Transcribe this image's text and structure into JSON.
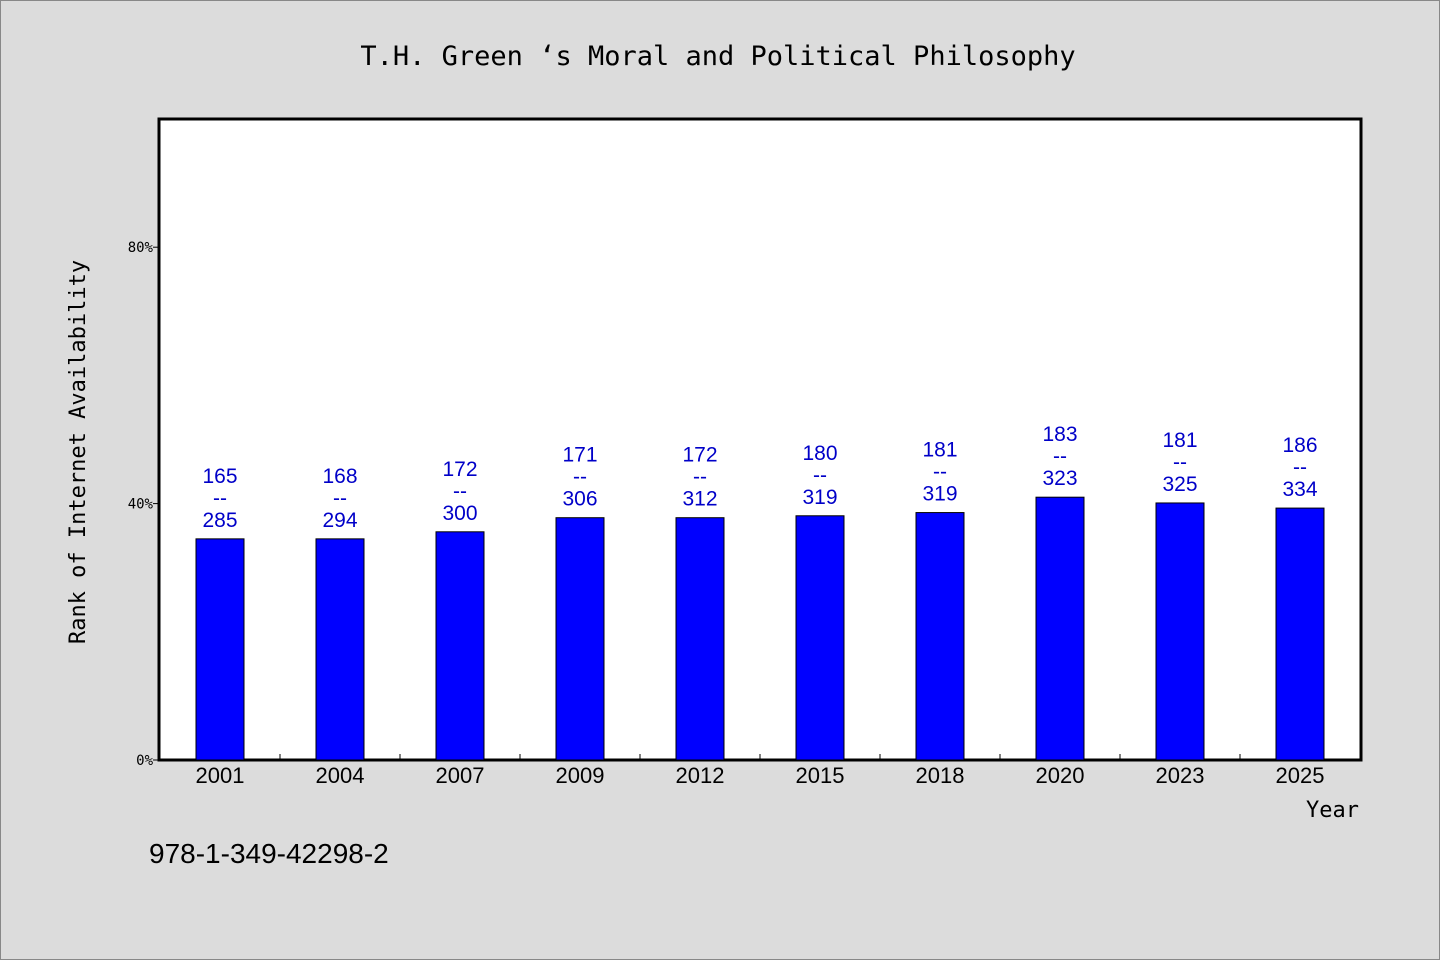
{
  "chart_data": {
    "type": "bar",
    "title": "T.H. Green ‘s Moral and Political Philosophy",
    "xlabel": "Year",
    "ylabel": "Rank of Internet Availability",
    "categories": [
      "2001",
      "2004",
      "2007",
      "2009",
      "2012",
      "2015",
      "2018",
      "2020",
      "2023",
      "2025"
    ],
    "values": [
      34.5,
      34.5,
      35.6,
      37.8,
      37.8,
      38.1,
      38.6,
      41.0,
      40.1,
      39.3
    ],
    "data_labels": [
      [
        "165",
        "--",
        "285"
      ],
      [
        "168",
        "--",
        "294"
      ],
      [
        "172",
        "--",
        "300"
      ],
      [
        "171",
        "--",
        "306"
      ],
      [
        "172",
        "--",
        "312"
      ],
      [
        "180",
        "--",
        "319"
      ],
      [
        "181",
        "--",
        "319"
      ],
      [
        "183",
        "--",
        "323"
      ],
      [
        "181",
        "--",
        "325"
      ],
      [
        "186",
        "--",
        "334"
      ]
    ],
    "ylim": [
      0,
      100
    ],
    "yticks": [
      0,
      40,
      80
    ],
    "ytick_labels": [
      "0%",
      "40%",
      "80%"
    ],
    "grid": false,
    "colors": {
      "bar": "#0000ff",
      "data_label": "#0000c8",
      "background": "#dcdcdc",
      "plot_background": "#ffffff"
    }
  },
  "footer": {
    "isbn": "978-1-349-42298-2"
  }
}
